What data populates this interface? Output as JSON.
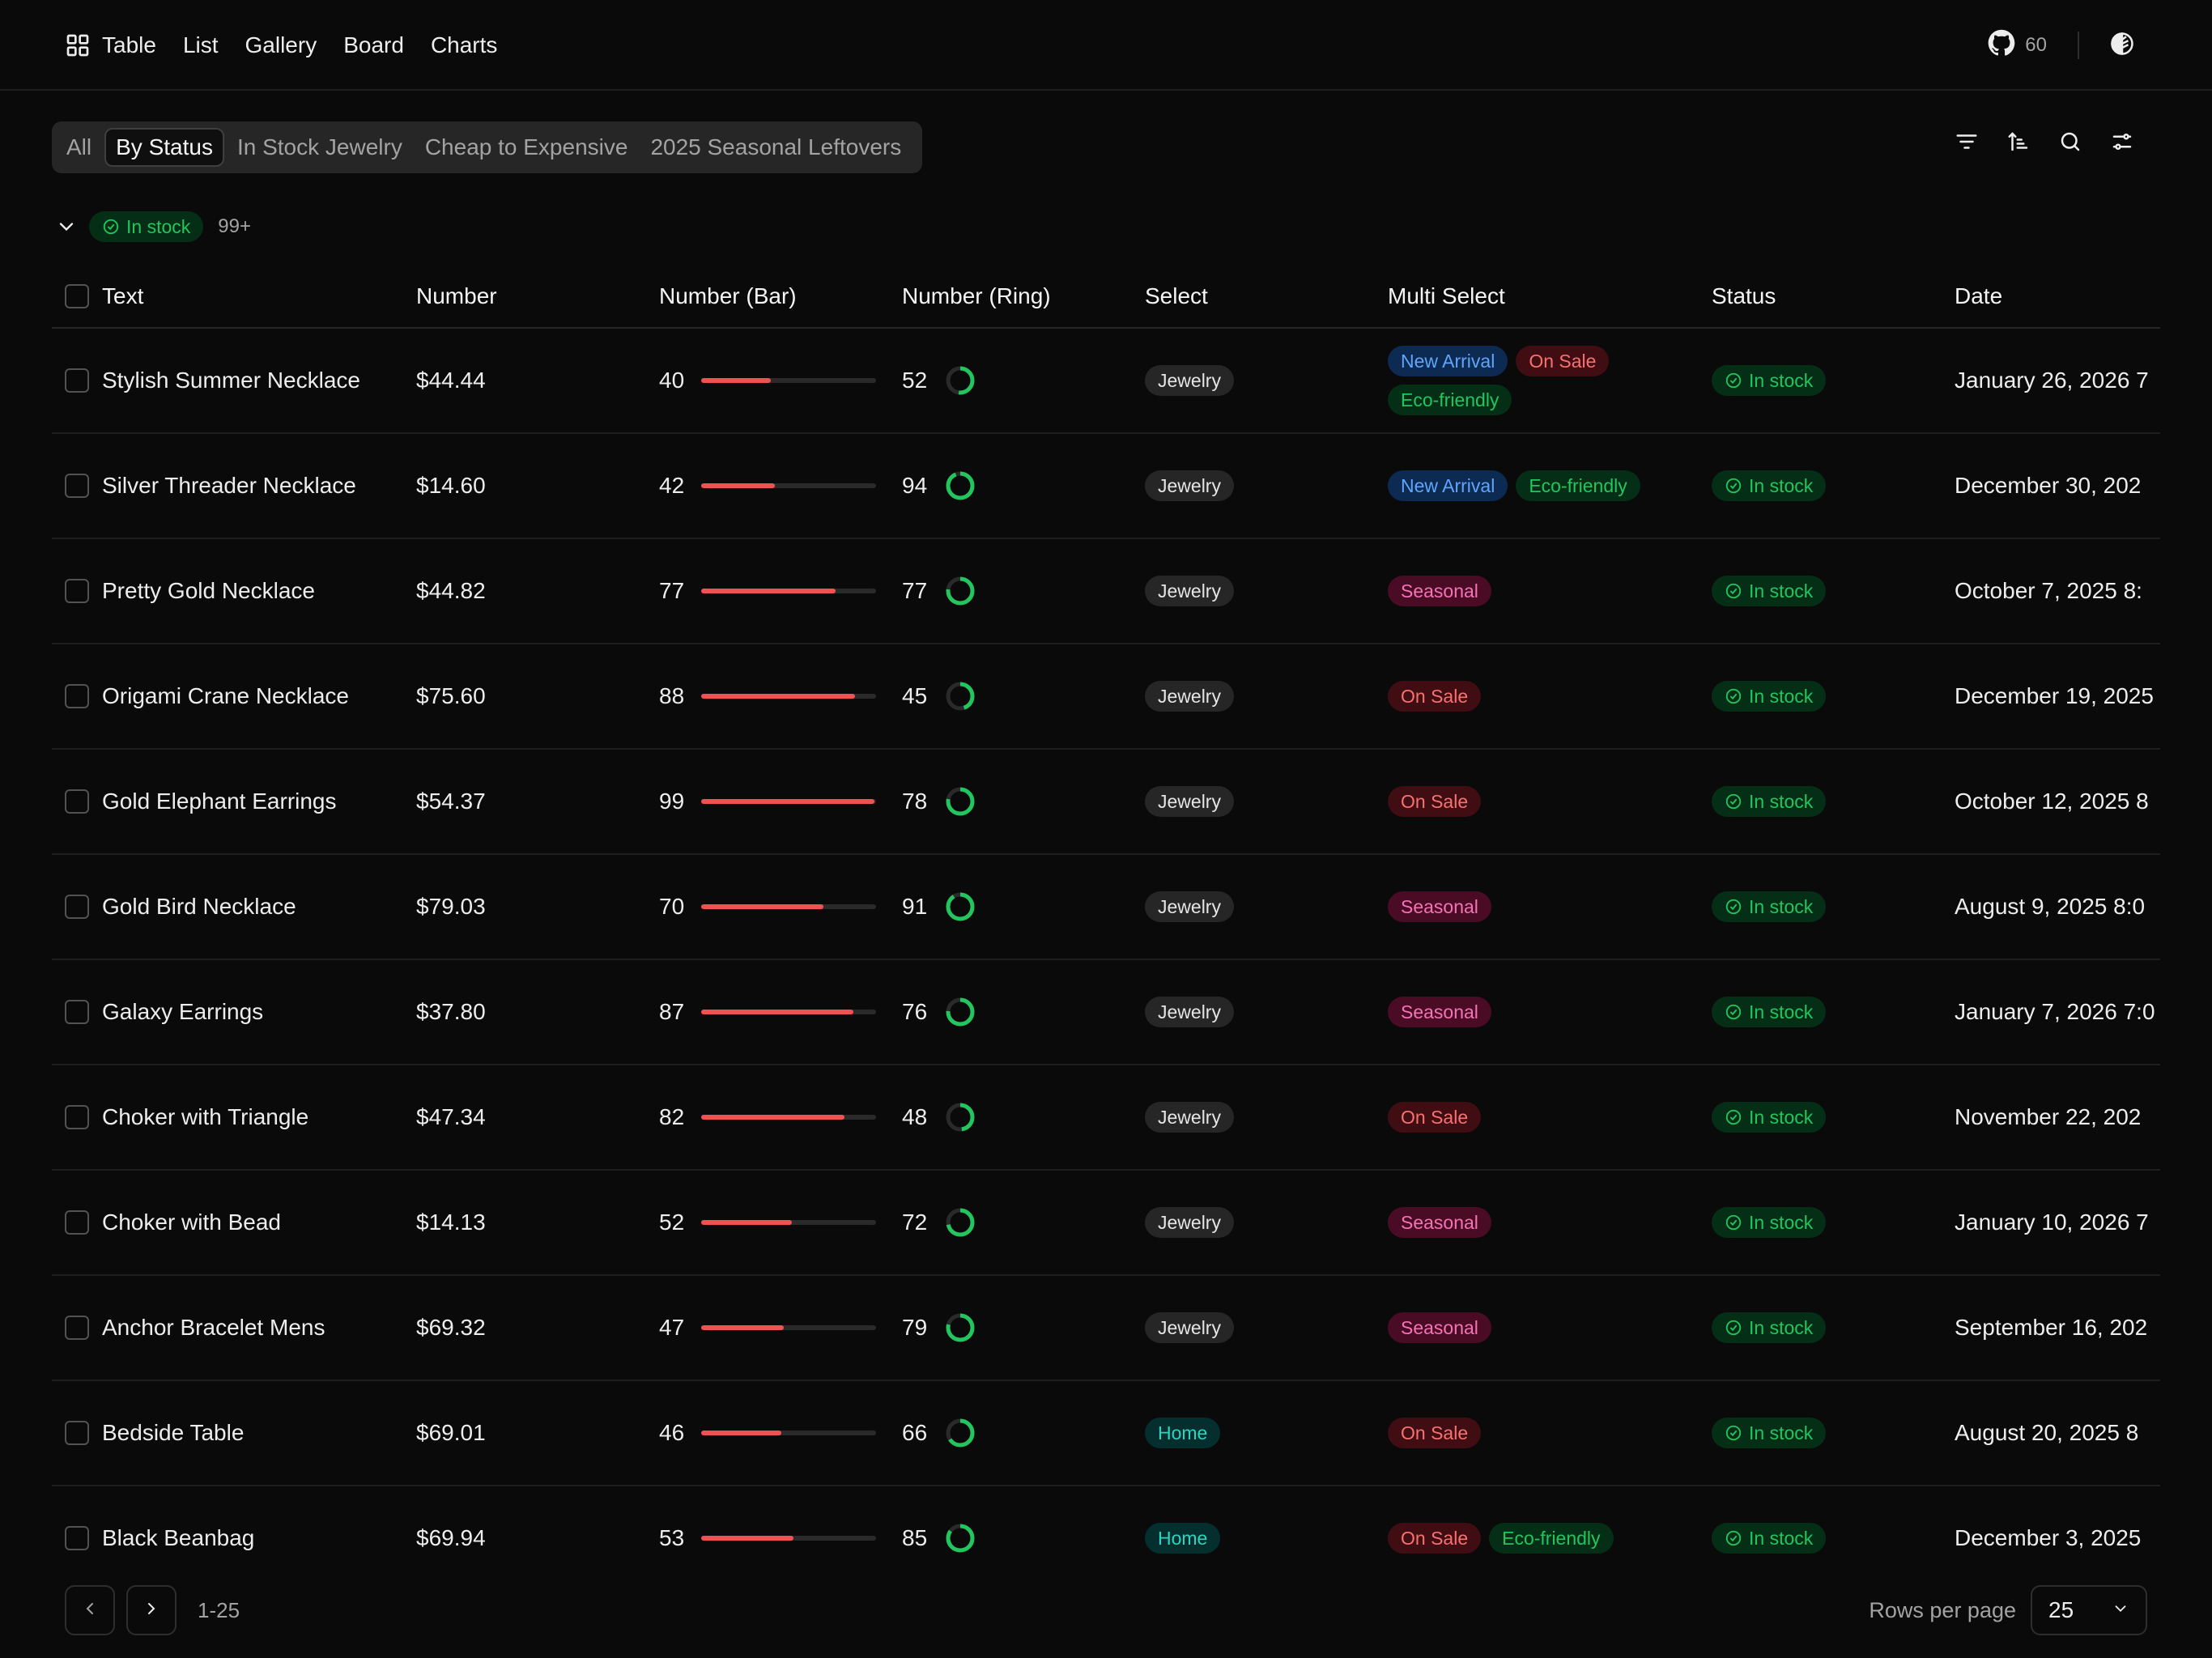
{
  "nav": {
    "items": [
      "Table",
      "List",
      "Gallery",
      "Board",
      "Charts"
    ],
    "github_count": "60"
  },
  "views": {
    "tabs": [
      "All",
      "By Status",
      "In Stock Jewelry",
      "Cheap to Expensive",
      "2025 Seasonal Leftovers"
    ],
    "active": "By Status"
  },
  "group": {
    "label": "In stock",
    "count": "99+"
  },
  "columns": [
    "Text",
    "Number",
    "Number (Bar)",
    "Number (Ring)",
    "Select",
    "Multi Select",
    "Status",
    "Date"
  ],
  "rows": [
    {
      "text": "Stylish Summer Necklace",
      "number": "$44.44",
      "bar": 40,
      "ring": 52,
      "select": "Jewelry",
      "multi": [
        "New Arrival",
        "On Sale",
        "Eco-friendly"
      ],
      "status": "In stock",
      "date": "January 26, 2026 7"
    },
    {
      "text": "Silver Threader Necklace",
      "number": "$14.60",
      "bar": 42,
      "ring": 94,
      "select": "Jewelry",
      "multi": [
        "New Arrival",
        "Eco-friendly"
      ],
      "status": "In stock",
      "date": "December 30, 202"
    },
    {
      "text": "Pretty Gold Necklace",
      "number": "$44.82",
      "bar": 77,
      "ring": 77,
      "select": "Jewelry",
      "multi": [
        "Seasonal"
      ],
      "status": "In stock",
      "date": "October 7, 2025 8:"
    },
    {
      "text": "Origami Crane Necklace",
      "number": "$75.60",
      "bar": 88,
      "ring": 45,
      "select": "Jewelry",
      "multi": [
        "On Sale"
      ],
      "status": "In stock",
      "date": "December 19, 2025"
    },
    {
      "text": "Gold Elephant Earrings",
      "number": "$54.37",
      "bar": 99,
      "ring": 78,
      "select": "Jewelry",
      "multi": [
        "On Sale"
      ],
      "status": "In stock",
      "date": "October 12, 2025 8"
    },
    {
      "text": "Gold Bird Necklace",
      "number": "$79.03",
      "bar": 70,
      "ring": 91,
      "select": "Jewelry",
      "multi": [
        "Seasonal"
      ],
      "status": "In stock",
      "date": "August 9, 2025 8:0"
    },
    {
      "text": "Galaxy Earrings",
      "number": "$37.80",
      "bar": 87,
      "ring": 76,
      "select": "Jewelry",
      "multi": [
        "Seasonal"
      ],
      "status": "In stock",
      "date": "January 7, 2026 7:0"
    },
    {
      "text": "Choker with Triangle",
      "number": "$47.34",
      "bar": 82,
      "ring": 48,
      "select": "Jewelry",
      "multi": [
        "On Sale"
      ],
      "status": "In stock",
      "date": "November 22, 202"
    },
    {
      "text": "Choker with Bead",
      "number": "$14.13",
      "bar": 52,
      "ring": 72,
      "select": "Jewelry",
      "multi": [
        "Seasonal"
      ],
      "status": "In stock",
      "date": "January 10, 2026 7"
    },
    {
      "text": "Anchor Bracelet Mens",
      "number": "$69.32",
      "bar": 47,
      "ring": 79,
      "select": "Jewelry",
      "multi": [
        "Seasonal"
      ],
      "status": "In stock",
      "date": "September 16, 202"
    },
    {
      "text": "Bedside Table",
      "number": "$69.01",
      "bar": 46,
      "ring": 66,
      "select": "Home",
      "multi": [
        "On Sale"
      ],
      "status": "In stock",
      "date": "August 20, 2025 8"
    },
    {
      "text": "Black Beanbag",
      "number": "$69.94",
      "bar": 53,
      "ring": 85,
      "select": "Home",
      "multi": [
        "On Sale",
        "Eco-friendly"
      ],
      "status": "In stock",
      "date": "December 3, 2025"
    }
  ],
  "tag_colors": {
    "New Arrival": "blue",
    "On Sale": "red",
    "Eco-friendly": "green",
    "Seasonal": "pink",
    "Jewelry": "gray",
    "Home": "teal"
  },
  "colors": {
    "bar": "#f05252",
    "ring": "#22c55e",
    "status": "#22c55e"
  },
  "pager": {
    "range": "1-25",
    "rows_label": "Rows per page",
    "rows_value": "25"
  }
}
